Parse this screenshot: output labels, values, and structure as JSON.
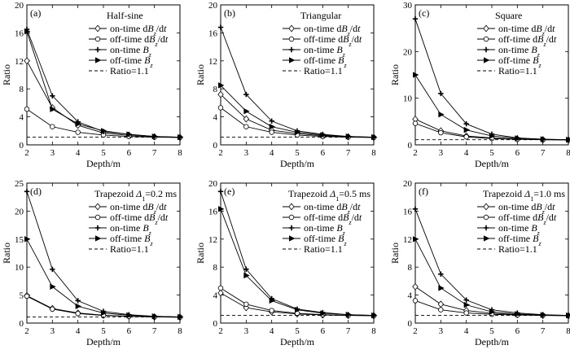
{
  "figure": {
    "series_names": [
      "on-time dBz/dt",
      "off-time dBz/dt",
      "on-time Bz",
      "off-time Bz",
      "Ratio=1.1"
    ],
    "series_legend_parts": [
      {
        "pre": "on-time d",
        "var": "B",
        "sub": "z",
        "post": "/d",
        "t": "t"
      },
      {
        "pre": "off-time d",
        "var": "B",
        "sub": "z",
        "post": "/d",
        "t": "t"
      },
      {
        "pre": "on-time ",
        "var": "B",
        "sub": "z",
        "post": "",
        "t": ""
      },
      {
        "pre": "off-time ",
        "var": "B",
        "sub": "z",
        "post": "",
        "t": ""
      },
      {
        "pre": "Ratio=1.1",
        "var": "",
        "sub": "",
        "post": "",
        "t": ""
      }
    ],
    "series_markers": [
      "diamond",
      "circle",
      "plus",
      "triangle-right",
      "none"
    ]
  },
  "chart_data": [
    {
      "type": "line",
      "panel_label": "(a)",
      "title": "Half-sine",
      "xlabel": "Depth/m",
      "ylabel": "Ratio",
      "xlim": [
        2,
        8
      ],
      "ylim": [
        0,
        20
      ],
      "xticks": [
        2,
        3,
        4,
        5,
        6,
        7,
        8
      ],
      "yticks": [
        0,
        4,
        8,
        12,
        16,
        20
      ],
      "x": [
        2,
        3,
        4,
        5,
        6,
        7,
        8
      ],
      "series": [
        {
          "name": "on-time dBz/dt",
          "values": [
            12.0,
            5.3,
            2.8,
            1.7,
            1.35,
            1.15,
            1.05
          ]
        },
        {
          "name": "off-time dBz/dt",
          "values": [
            5.1,
            2.6,
            1.8,
            1.4,
            1.2,
            1.1,
            1.05
          ]
        },
        {
          "name": "on-time Bz",
          "values": [
            16.5,
            7.0,
            3.3,
            1.9,
            1.5,
            1.2,
            1.1
          ]
        },
        {
          "name": "off-time Bz",
          "values": [
            16.2,
            5.1,
            3.0,
            2.0,
            1.5,
            1.2,
            1.1
          ]
        },
        {
          "name": "Ratio=1.1",
          "values": [
            1.1,
            1.1,
            1.1,
            1.1,
            1.1,
            1.1,
            1.1
          ]
        }
      ]
    },
    {
      "type": "line",
      "panel_label": "(b)",
      "title": "Triangular",
      "xlabel": "Depth/m",
      "ylabel": "Ratio",
      "xlim": [
        2,
        8
      ],
      "ylim": [
        0,
        20
      ],
      "xticks": [
        2,
        3,
        4,
        5,
        6,
        7,
        8
      ],
      "yticks": [
        0,
        4,
        8,
        12,
        16,
        20
      ],
      "x": [
        2,
        3,
        4,
        5,
        6,
        7,
        8
      ],
      "series": [
        {
          "name": "on-time dBz/dt",
          "values": [
            7.2,
            3.7,
            2.1,
            1.6,
            1.3,
            1.15,
            1.05
          ]
        },
        {
          "name": "off-time dBz/dt",
          "values": [
            5.3,
            2.6,
            1.8,
            1.4,
            1.2,
            1.1,
            1.05
          ]
        },
        {
          "name": "on-time Bz",
          "values": [
            16.8,
            7.2,
            3.4,
            2.0,
            1.5,
            1.2,
            1.1
          ]
        },
        {
          "name": "off-time Bz",
          "values": [
            8.5,
            4.8,
            2.6,
            1.8,
            1.4,
            1.2,
            1.1
          ]
        },
        {
          "name": "Ratio=1.1",
          "values": [
            1.1,
            1.1,
            1.1,
            1.1,
            1.1,
            1.1,
            1.1
          ]
        }
      ]
    },
    {
      "type": "line",
      "panel_label": "(c)",
      "title": "Square",
      "xlabel": "Depth/m",
      "ylabel": "Ratio",
      "xlim": [
        2,
        8
      ],
      "ylim": [
        0,
        30
      ],
      "xticks": [
        2,
        3,
        4,
        5,
        6,
        7,
        8
      ],
      "yticks": [
        0,
        10,
        20,
        30
      ],
      "x": [
        2,
        3,
        4,
        5,
        6,
        7,
        8
      ],
      "series": [
        {
          "name": "on-time dBz/dt",
          "values": [
            5.5,
            3.0,
            1.9,
            1.5,
            1.25,
            1.1,
            1.05
          ]
        },
        {
          "name": "off-time dBz/dt",
          "values": [
            4.6,
            2.6,
            1.7,
            1.35,
            1.2,
            1.1,
            1.05
          ]
        },
        {
          "name": "on-time Bz",
          "values": [
            27.0,
            11.0,
            4.5,
            2.3,
            1.5,
            1.2,
            1.1
          ]
        },
        {
          "name": "off-time Bz",
          "values": [
            15.0,
            6.5,
            3.2,
            1.9,
            1.4,
            1.2,
            1.1
          ]
        },
        {
          "name": "Ratio=1.1",
          "values": [
            1.1,
            1.1,
            1.1,
            1.1,
            1.1,
            1.1,
            1.1
          ]
        }
      ]
    },
    {
      "type": "line",
      "panel_label": "(d)",
      "title": "Trapezoid Δ1=0.2 ms",
      "title_parts": {
        "pre": "Trapezoid ",
        "sym": "Δ",
        "sub": "1",
        "post": "=0.2 ms"
      },
      "xlabel": "Depth/m",
      "ylabel": "Ratio",
      "xlim": [
        2,
        8
      ],
      "ylim": [
        0,
        25
      ],
      "xticks": [
        2,
        3,
        4,
        5,
        6,
        7,
        8
      ],
      "yticks": [
        0,
        5,
        10,
        15,
        20,
        25
      ],
      "x": [
        2,
        3,
        4,
        5,
        6,
        7,
        8
      ],
      "series": [
        {
          "name": "on-time dBz/dt",
          "values": [
            4.9,
            2.6,
            1.8,
            1.4,
            1.2,
            1.1,
            1.05
          ]
        },
        {
          "name": "off-time dBz/dt",
          "values": [
            4.8,
            2.5,
            1.7,
            1.35,
            1.2,
            1.1,
            1.05
          ]
        },
        {
          "name": "on-time Bz",
          "values": [
            23.5,
            9.6,
            4.0,
            2.1,
            1.5,
            1.2,
            1.1
          ]
        },
        {
          "name": "off-time Bz",
          "values": [
            15.0,
            6.5,
            3.0,
            1.8,
            1.4,
            1.2,
            1.1
          ]
        },
        {
          "name": "Ratio=1.1",
          "values": [
            1.1,
            1.1,
            1.1,
            1.1,
            1.1,
            1.1,
            1.1
          ]
        }
      ]
    },
    {
      "type": "line",
      "panel_label": "(e)",
      "title": "Trapezoid Δ1=0.5 ms",
      "title_parts": {
        "pre": "Trapezoid ",
        "sym": "Δ",
        "sub": "1",
        "post": "=0.5 ms"
      },
      "xlabel": "Depth/m",
      "ylabel": "Ratio",
      "xlim": [
        2,
        8
      ],
      "ylim": [
        0,
        20
      ],
      "xticks": [
        2,
        3,
        4,
        5,
        6,
        7,
        8
      ],
      "yticks": [
        0,
        4,
        8,
        12,
        16,
        20
      ],
      "x": [
        2,
        3,
        4,
        5,
        6,
        7,
        8
      ],
      "series": [
        {
          "name": "on-time dBz/dt",
          "values": [
            4.3,
            2.2,
            1.6,
            1.3,
            1.15,
            1.1,
            1.05
          ]
        },
        {
          "name": "off-time dBz/dt",
          "values": [
            5.0,
            2.7,
            1.8,
            1.4,
            1.2,
            1.1,
            1.05
          ]
        },
        {
          "name": "on-time Bz",
          "values": [
            18.8,
            7.7,
            3.5,
            2.0,
            1.5,
            1.2,
            1.1
          ]
        },
        {
          "name": "off-time Bz",
          "values": [
            16.3,
            6.8,
            3.2,
            1.9,
            1.4,
            1.2,
            1.1
          ]
        },
        {
          "name": "Ratio=1.1",
          "values": [
            1.1,
            1.1,
            1.1,
            1.1,
            1.1,
            1.1,
            1.1
          ]
        }
      ]
    },
    {
      "type": "line",
      "panel_label": "(f)",
      "title": "Trapezoid Δ1=1.0 ms",
      "title_parts": {
        "pre": "Trapezoid ",
        "sym": "Δ",
        "sub": "1",
        "post": "=1.0 ms"
      },
      "xlabel": "Depth/m",
      "ylabel": "Ratio",
      "xlim": [
        2,
        8
      ],
      "ylim": [
        0,
        20
      ],
      "xticks": [
        2,
        3,
        4,
        5,
        6,
        7,
        8
      ],
      "yticks": [
        0,
        4,
        8,
        12,
        16,
        20
      ],
      "x": [
        2,
        3,
        4,
        5,
        6,
        7,
        8
      ],
      "series": [
        {
          "name": "on-time dBz/dt",
          "values": [
            5.2,
            2.7,
            1.8,
            1.4,
            1.2,
            1.1,
            1.05
          ]
        },
        {
          "name": "off-time dBz/dt",
          "values": [
            3.2,
            1.9,
            1.45,
            1.25,
            1.15,
            1.1,
            1.05
          ]
        },
        {
          "name": "on-time Bz",
          "values": [
            16.3,
            7.0,
            3.3,
            1.9,
            1.45,
            1.2,
            1.1
          ]
        },
        {
          "name": "off-time Bz",
          "values": [
            12.0,
            5.0,
            2.6,
            1.6,
            1.3,
            1.15,
            1.1
          ]
        },
        {
          "name": "Ratio=1.1",
          "values": [
            1.1,
            1.1,
            1.1,
            1.1,
            1.1,
            1.1,
            1.1
          ]
        }
      ]
    }
  ]
}
